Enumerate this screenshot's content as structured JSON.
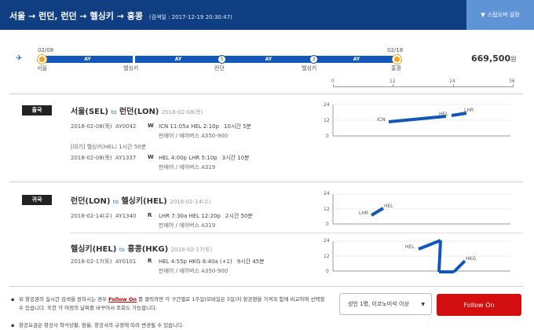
{
  "header": {
    "route": "서울 → 런던, 런던 → 헬싱키 → 홍콩",
    "search_date": "(검색일 : 2017-12-19 20:30:47)",
    "stopover_label": "스탑오버 설정"
  },
  "summary": {
    "dep_date": "02/08",
    "ret_date": "02/18",
    "airline": "AY",
    "cities": [
      "서울",
      "헬싱키",
      "런던",
      "헬싱키",
      "홍콩"
    ],
    "stay_london": "5",
    "stay_helsinki": "3",
    "total_price": "669,500",
    "currency": "원"
  },
  "timeline_axis": {
    "ticks": [
      "0",
      "12",
      "24",
      "36"
    ]
  },
  "outbound": {
    "badge": "출국",
    "from": "서울(SEL)",
    "to_word": "to",
    "to": "런던(LON)",
    "date": "2018-02-08(목)",
    "flight1": {
      "date": "2018-02-08(목)",
      "flight": "AY0042",
      "class": "W",
      "route": "ICN 11:05a HEL 2:10p",
      "duration": "10시간 5분",
      "aircraft": "핀에어 / 에어버스 A350-900"
    },
    "layover": "[대기] 헬싱키(HEL)   1시간 50분",
    "flight2": {
      "date": "2018-02-08(목)",
      "flight": "AY1337",
      "class": "W",
      "route": "HEL 4:00p LHR 5:10p",
      "duration": "3시간 10분",
      "aircraft": "핀에어 / 에어버스 A319"
    },
    "chart": {
      "y_ticks": [
        "24",
        "12",
        "0"
      ],
      "labels": [
        "ICN",
        "HEL",
        "LHR"
      ]
    }
  },
  "return1": {
    "badge": "귀국",
    "from": "런던(LON)",
    "to_word": "to",
    "to": "헬싱키(HEL)",
    "date": "2018-02-14(수)",
    "flight1": {
      "date": "2018-02-14(수)",
      "flight": "AY1340",
      "class": "R",
      "route": "LHR 7:30a HEL 12:20p",
      "duration": "2시간 50분",
      "aircraft": "핀에어 / 에어버스 A319"
    },
    "chart": {
      "y_ticks": [
        "24",
        "12",
        "0"
      ],
      "labels": [
        "LHR",
        "HEL"
      ]
    }
  },
  "return2": {
    "from": "헬싱키(HEL)",
    "to_word": "to",
    "to": "홍콩(HKG)",
    "date": "2018-02-17(토)",
    "flight1": {
      "date": "2018-02-17(토)",
      "flight": "AY0101",
      "class": "R",
      "route": "HEL 4:55p HKG 8:40a (+1)",
      "duration": "9시간 45분",
      "aircraft": "핀에어 / 에어버스 A350-900"
    },
    "chart": {
      "y_ticks": [
        "24",
        "12",
        "0"
      ],
      "labels": [
        "HEL",
        "HKG"
      ]
    }
  },
  "notes": {
    "n1_pre": "위 항공권의 실시간 검색을 원하시는 경우",
    "n1_link": "Follow On",
    "n1_post": "를 클릭하면 각 구간별로 1주일(모바일은 5일)치 항공편을 가격과 함께 비교하며 선택할 수 있습니다. 또한 각 여정의 날짜를 바꾸어서 조회도 가능합니다.",
    "n2": "항공요금은 항공사 좌석상황, 환율, 항공사의 규정에 따라 변경될 수 있습니다."
  },
  "pax_select": "성인 1명, 이코노미석 이상",
  "follow_on_button": "Follow On",
  "colors": {
    "header": "#0f3f82",
    "accent": "#1158b8",
    "button": "#d20e0e",
    "node": "#f4a321"
  }
}
